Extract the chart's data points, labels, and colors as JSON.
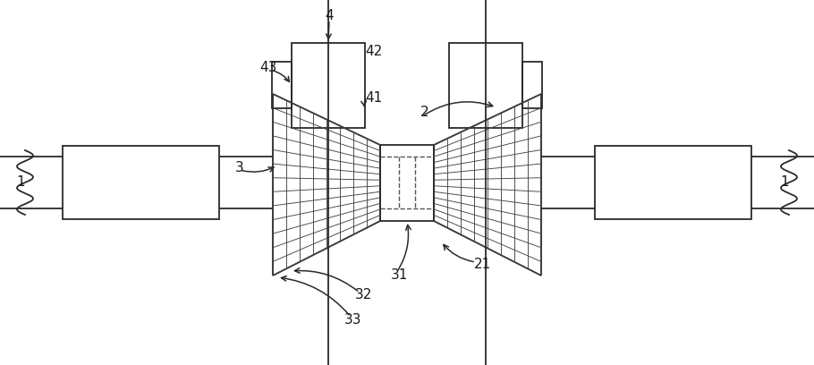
{
  "bg_color": "#ffffff",
  "line_color": "#2a2a2a",
  "lw": 1.3,
  "fig_width": 9.1,
  "fig_height": 4.08,
  "dpi": 100
}
